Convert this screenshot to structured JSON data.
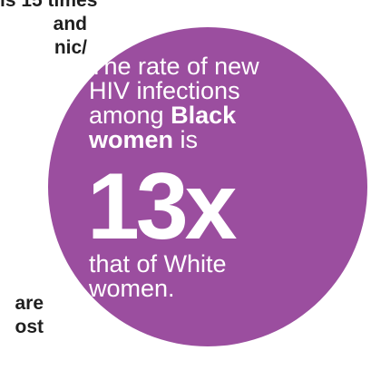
{
  "background_text": {
    "top_lines": [
      "is 15 times",
      "and",
      "nic/"
    ],
    "bottom_lines": [
      "are",
      "ost"
    ]
  },
  "circle": {
    "color": "#9b4e9f",
    "line1": "The rate of new",
    "line2": "HIV infections",
    "line3": "among",
    "line3_bold": "Black",
    "line4_bold": "women",
    "line4": " is",
    "big_number": "13x",
    "line5": "that of White",
    "line6": "women."
  }
}
